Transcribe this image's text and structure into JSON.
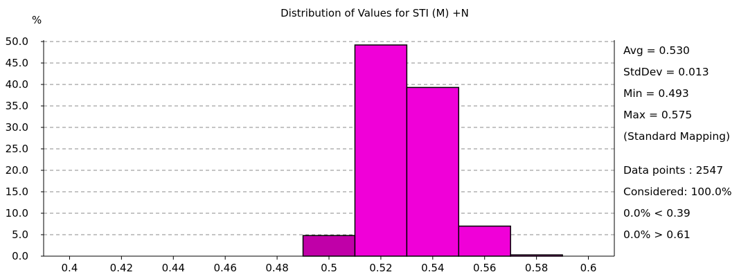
{
  "chart_data": {
    "type": "bar",
    "title": "Distribution of Values for STI (M) +N",
    "ylabel": "%",
    "xlabel": "",
    "x_ticks": [
      "0.4",
      "0.42",
      "0.44",
      "0.46",
      "0.48",
      "0.5",
      "0.52",
      "0.54",
      "0.56",
      "0.58",
      "0.6"
    ],
    "y_ticks": [
      "0.0",
      "5.0",
      "10.0",
      "15.0",
      "20.0",
      "25.0",
      "30.0",
      "35.0",
      "40.0",
      "45.0",
      "50.0"
    ],
    "xlim": [
      0.39,
      0.61
    ],
    "ylim": [
      0,
      50
    ],
    "grid": true,
    "bins": [
      {
        "x0": 0.49,
        "x1": 0.51,
        "value": 4.8,
        "color": "#c000a8"
      },
      {
        "x0": 0.51,
        "x1": 0.53,
        "value": 49.2,
        "color": "#f000d8"
      },
      {
        "x0": 0.53,
        "x1": 0.55,
        "value": 39.3,
        "color": "#f000d8"
      },
      {
        "x0": 0.55,
        "x1": 0.57,
        "value": 7.0,
        "color": "#f000d8"
      },
      {
        "x0": 0.57,
        "x1": 0.59,
        "value": 0.3,
        "color": "#f000d8"
      }
    ]
  },
  "stats": {
    "avg": "Avg = 0.530",
    "stddev": "StdDev = 0.013",
    "min": "Min = 0.493",
    "max": "Max = 0.575",
    "mapping": "(Standard Mapping)",
    "data_points": "Data points : 2547",
    "considered": "Considered: 100.0%",
    "below": "0.0%  < 0.39",
    "above": "0.0%  > 0.61"
  }
}
